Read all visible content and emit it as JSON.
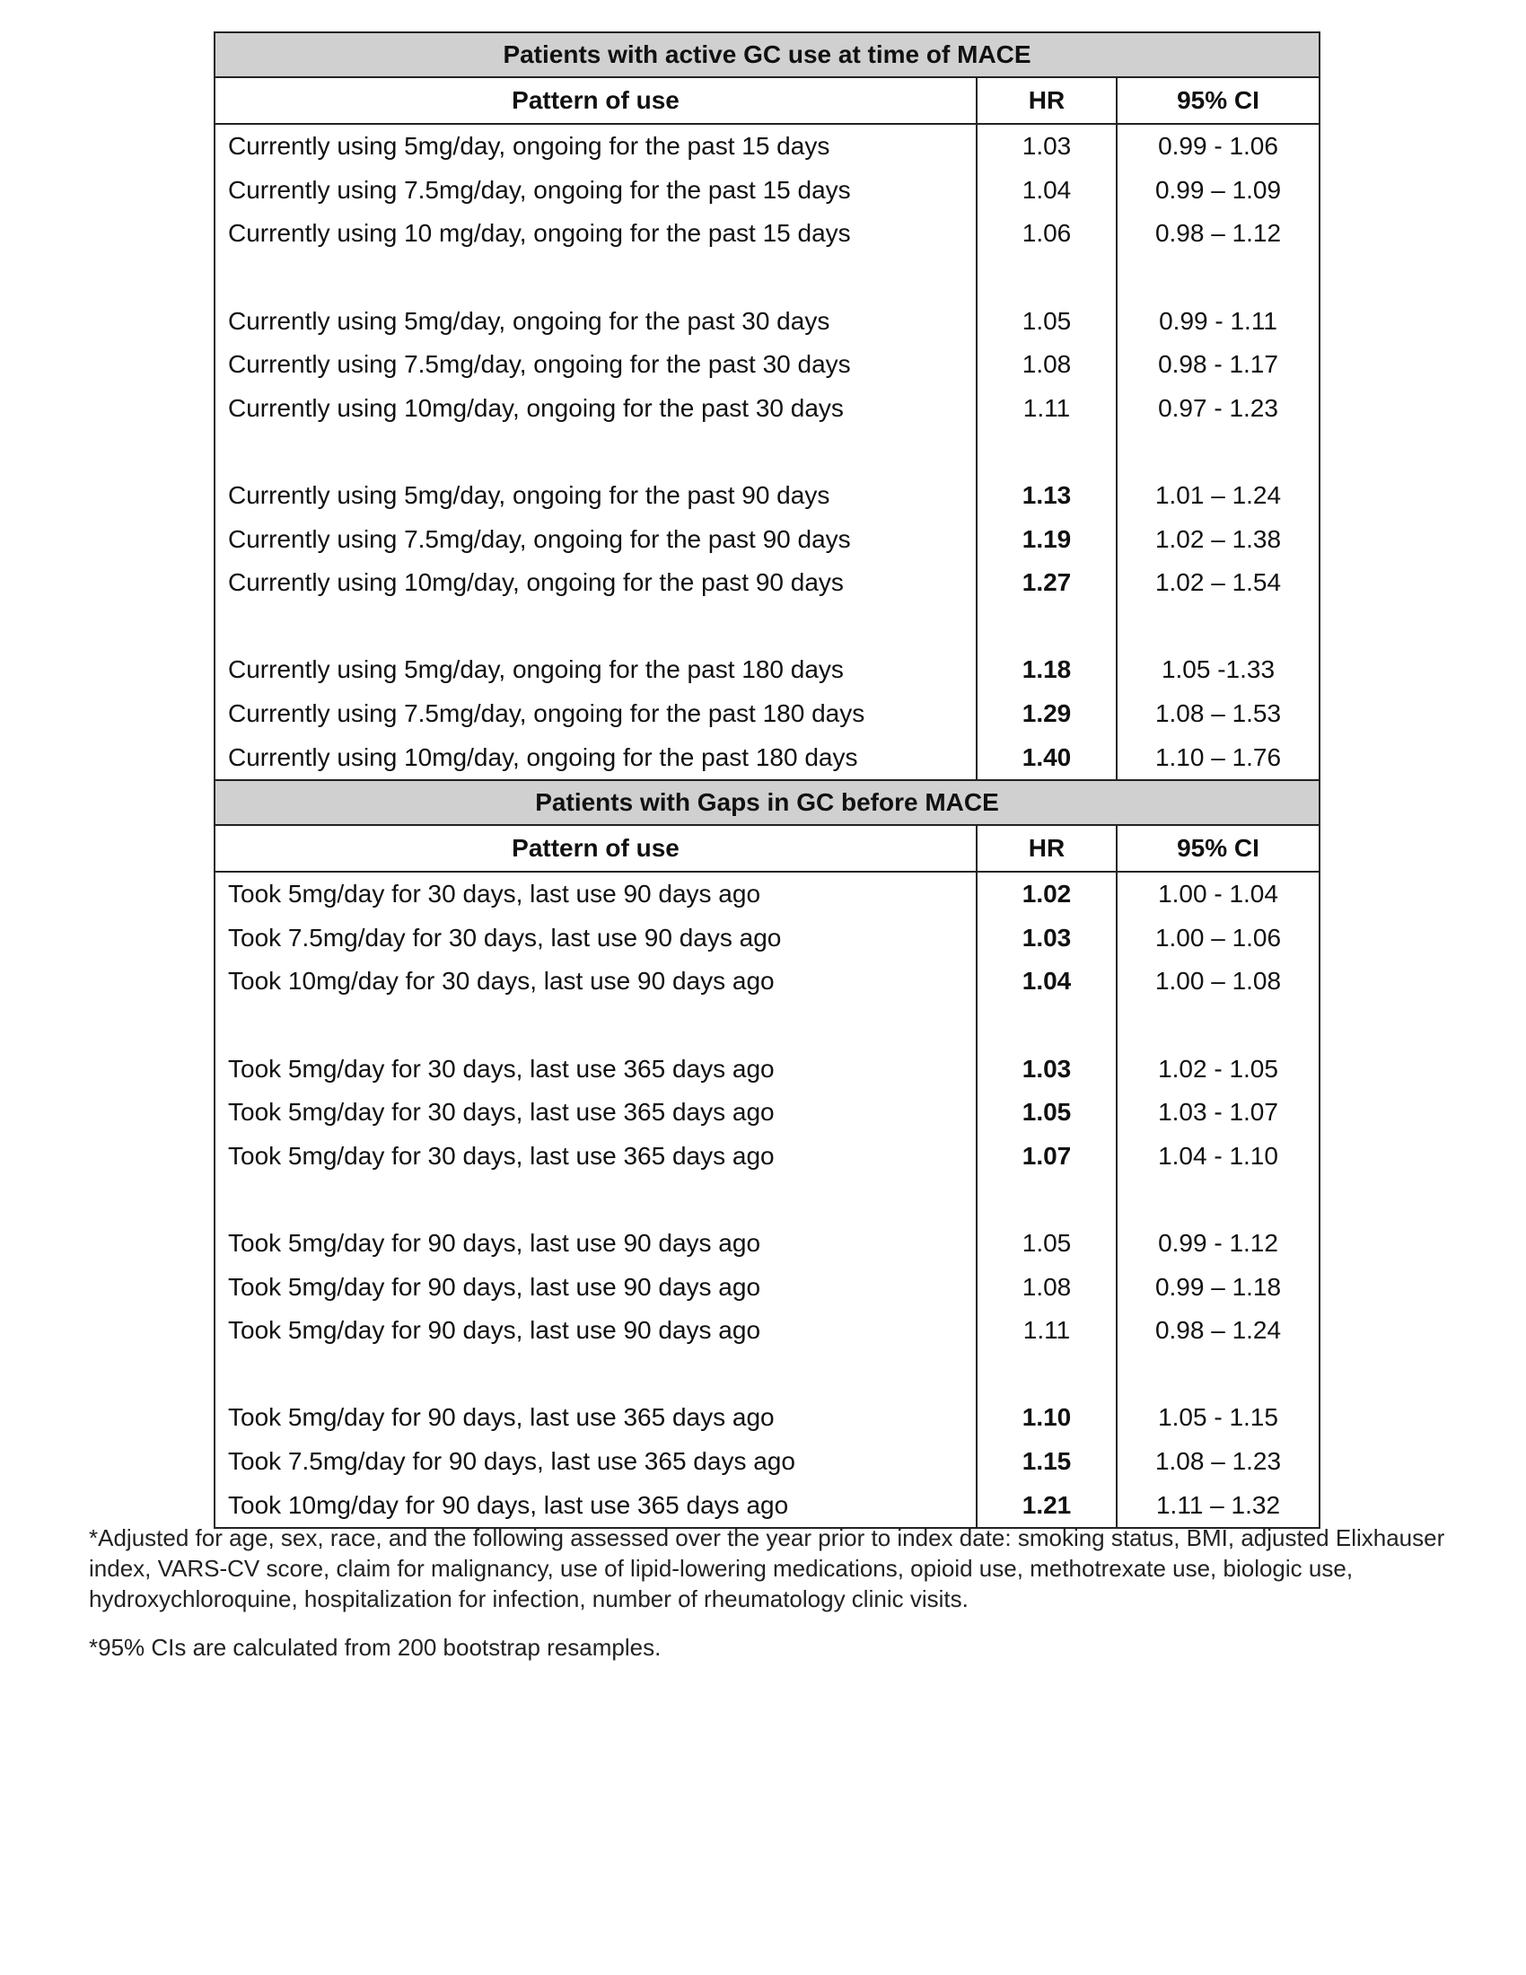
{
  "columns": {
    "pattern": "Pattern of use",
    "hr": "HR",
    "ci": "95% CI"
  },
  "sections": [
    {
      "title": "Patients with active GC use at time of MACE",
      "groups": [
        [
          {
            "pattern": "Currently using 5mg/day, ongoing for the past 15 days",
            "hr": "1.03",
            "ci": "0.99 - 1.06",
            "bold": false
          },
          {
            "pattern": "Currently using 7.5mg/day, ongoing for the past 15 days",
            "hr": "1.04",
            "ci": "0.99 – 1.09",
            "bold": false
          },
          {
            "pattern": "Currently using 10 mg/day, ongoing for the past 15 days",
            "hr": "1.06",
            "ci": "0.98 – 1.12",
            "bold": false
          }
        ],
        [
          {
            "pattern": "Currently using 5mg/day, ongoing for the past 30 days",
            "hr": "1.05",
            "ci": "0.99 - 1.11",
            "bold": false
          },
          {
            "pattern": "Currently using 7.5mg/day, ongoing for the past 30 days",
            "hr": "1.08",
            "ci": "0.98 - 1.17",
            "bold": false
          },
          {
            "pattern": "Currently using 10mg/day, ongoing for the past 30 days",
            "hr": "1.11",
            "ci": "0.97 - 1.23",
            "bold": false
          }
        ],
        [
          {
            "pattern": "Currently using 5mg/day, ongoing for the past 90 days",
            "hr": "1.13",
            "ci": "1.01 – 1.24",
            "bold": true
          },
          {
            "pattern": "Currently using 7.5mg/day, ongoing for the past 90 days",
            "hr": "1.19",
            "ci": "1.02 – 1.38",
            "bold": true
          },
          {
            "pattern": "Currently using 10mg/day, ongoing for the past 90 days",
            "hr": "1.27",
            "ci": "1.02 – 1.54",
            "bold": true
          }
        ],
        [
          {
            "pattern": "Currently using 5mg/day, ongoing for the past 180 days",
            "hr": "1.18",
            "ci": "1.05 -1.33",
            "bold": true
          },
          {
            "pattern": "Currently using 7.5mg/day, ongoing for the past 180 days",
            "hr": "1.29",
            "ci": "1.08 – 1.53",
            "bold": true
          },
          {
            "pattern": "Currently using 10mg/day, ongoing for the past 180 days",
            "hr": "1.40",
            "ci": "1.10 – 1.76",
            "bold": true
          }
        ]
      ]
    },
    {
      "title": "Patients with Gaps in GC before MACE",
      "groups": [
        [
          {
            "pattern": "Took 5mg/day for 30 days, last use 90 days ago",
            "hr": "1.02",
            "ci": "1.00 -  1.04",
            "bold": true
          },
          {
            "pattern": "Took 7.5mg/day for 30 days, last use 90 days ago",
            "hr": "1.03",
            "ci": "1.00 – 1.06",
            "bold": true
          },
          {
            "pattern": "Took 10mg/day for 30 days, last use 90 days ago",
            "hr": "1.04",
            "ci": "1.00 – 1.08",
            "bold": true
          }
        ],
        [
          {
            "pattern": "Took 5mg/day for 30 days, last use 365 days ago",
            "hr": "1.03",
            "ci": "1.02 - 1.05",
            "bold": true
          },
          {
            "pattern": "Took 5mg/day for 30 days, last use 365 days ago",
            "hr": "1.05",
            "ci": "1.03 - 1.07",
            "bold": true
          },
          {
            "pattern": "Took 5mg/day for 30 days, last use 365 days ago",
            "hr": "1.07",
            "ci": "1.04 - 1.10",
            "bold": true
          }
        ],
        [
          {
            "pattern": "Took 5mg/day for 90 days, last use 90 days ago",
            "hr": "1.05",
            "ci": "0.99 - 1.12",
            "bold": false
          },
          {
            "pattern": "Took 5mg/day for 90 days, last use 90 days ago",
            "hr": "1.08",
            "ci": "0.99 – 1.18",
            "bold": false
          },
          {
            "pattern": "Took 5mg/day for 90 days, last use 90 days ago",
            "hr": "1.11",
            "ci": "0.98 – 1.24",
            "bold": false
          }
        ],
        [
          {
            "pattern": "Took 5mg/day for 90 days, last use 365 days ago",
            "hr": "1.10",
            "ci": "1.05 - 1.15",
            "bold": true
          },
          {
            "pattern": "Took 7.5mg/day for 90 days, last use 365 days ago",
            "hr": "1.15",
            "ci": "1.08 – 1.23",
            "bold": true
          },
          {
            "pattern": "Took 10mg/day for 90 days, last use 365 days ago",
            "hr": "1.21",
            "ci": "1.11 – 1.32",
            "bold": true
          }
        ]
      ]
    }
  ],
  "footnotes": [
    "*Adjusted for age, sex, race, and the following assessed over the year prior to index date: smoking status, BMI, adjusted Elixhauser index, VARS-CV score, claim for malignancy, use of lipid-lowering medications, opioid use, methotrexate use, biologic use, hydroxychloroquine, hospitalization for infection, number of rheumatology clinic visits.",
    "*95% CIs are calculated from 200 bootstrap resamples."
  ]
}
